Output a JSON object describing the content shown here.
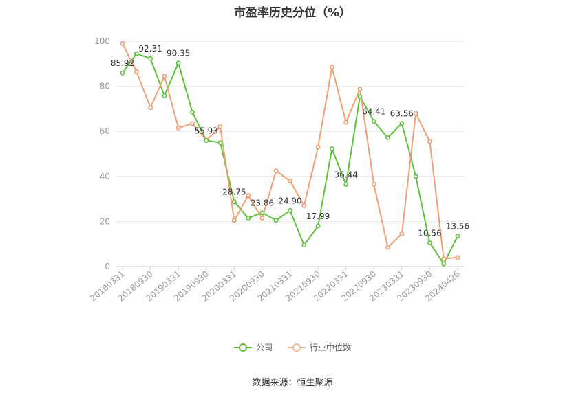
{
  "chart_data": {
    "type": "line",
    "title": "市盈率历史分位（%）",
    "xlabel": "",
    "ylabel": "",
    "ylim": [
      0,
      100
    ],
    "yticks": [
      0,
      20,
      40,
      60,
      80,
      100
    ],
    "grid": true,
    "legend_position": "bottom",
    "x": [
      "20180331",
      "20180630",
      "20180930",
      "20181231",
      "20190331",
      "20190630",
      "20190930",
      "20191231",
      "20200331",
      "20200630",
      "20200930",
      "20201231",
      "20210331",
      "20210630",
      "20210930",
      "20211231",
      "20220331",
      "20220630",
      "20220930",
      "20221231",
      "20230331",
      "20230630",
      "20230930",
      "20231231",
      "20240426"
    ],
    "x_tick_labels": [
      "20180331",
      "20180930",
      "20190331",
      "20190930",
      "20200331",
      "20200930",
      "20210331",
      "20210930",
      "20220331",
      "20220930",
      "20230331",
      "20230930",
      "20240426"
    ],
    "series": [
      {
        "name": "公司",
        "color": "#5cc23a",
        "values": [
          85.92,
          94.5,
          92.31,
          75.8,
          90.35,
          68.5,
          55.93,
          55.0,
          28.75,
          21.5,
          23.86,
          20.5,
          24.9,
          9.5,
          17.99,
          52.3,
          36.44,
          75.5,
          64.41,
          57.2,
          63.56,
          40.0,
          10.56,
          1.2,
          13.56
        ],
        "data_labels": {
          "0": "85.92",
          "2": "92.31",
          "4": "90.35",
          "6": "55.93",
          "8": "28.75",
          "10": "23.86",
          "12": "24.90",
          "14": "17.99",
          "16": "36.44",
          "18": "64.41",
          "20": "63.56",
          "22": "10.56",
          "24": "13.56"
        }
      },
      {
        "name": "行业中位数",
        "color": "#f09a6c",
        "values": [
          99.0,
          86.5,
          70.5,
          84.5,
          61.5,
          63.5,
          56.0,
          62.0,
          20.5,
          31.5,
          21.5,
          42.5,
          38.0,
          27.0,
          53.0,
          88.5,
          64.0,
          78.8,
          36.5,
          8.5,
          14.5,
          68.0,
          55.5,
          3.5,
          4.0
        ]
      }
    ]
  },
  "legend": [
    {
      "label": "公司",
      "color": "#5cc23a"
    },
    {
      "label": "行业中位数",
      "color": "#f09a6c"
    }
  ],
  "source": "数据来源：恒生聚源"
}
